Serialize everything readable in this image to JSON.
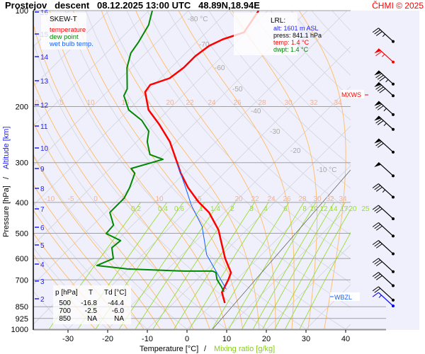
{
  "header": {
    "title": "Prostejov   descent   08.12.2025 13:00 UTC   48.89N,18.94E",
    "copyright": "ČHMI © 2025"
  },
  "legend": {
    "title": "SKEW-T",
    "temperature": "temperature",
    "dew_point": "dew point",
    "wet_bulb": "wet bulb temp."
  },
  "lrl": {
    "title": "LRL:",
    "alt": "alt: 1601 m ASL",
    "press": "press: 841.1 hPa",
    "temp": "temp: 1.4 °C",
    "dwpt": "dwpt: 1.4 °C"
  },
  "table": {
    "headers": [
      "p [hPa]",
      "T",
      "Td [°C]"
    ],
    "rows": [
      [
        "500",
        "-16.8",
        "-44.4"
      ],
      [
        "700",
        "-2.5",
        "-6.0"
      ],
      [
        "850",
        "NA",
        "NA"
      ]
    ]
  },
  "markers": {
    "mxws": "MXWS",
    "wbzl": "WBZL"
  },
  "colors": {
    "temperature": "#ff0000",
    "dew_point": "#008800",
    "wet_bulb": "#1060ff",
    "moist": "#ffc070",
    "mixing": "#99dd33",
    "plot_bg": "#f0f0fc"
  },
  "chart_data": {
    "type": "line",
    "title": "Prostejov descent 08.12.2025 13:00 UTC 48.89N,18.94E",
    "xlabel": "Temperature [°C]",
    "xlabel_sep": "/",
    "xlabel2": "Mixing ratio [g/kg]",
    "ylabel": "Pressure [hPa]",
    "ylabel_sep": "/",
    "ylabel2": "Altitude [km]",
    "ylim": [
      1000,
      100
    ],
    "xlim": [
      -39,
      50
    ],
    "x_ticks": [
      "-30",
      "-20",
      "-10",
      "0",
      "10",
      "20",
      "30",
      "40"
    ],
    "p_ticks": [
      "100",
      "200",
      "300",
      "400",
      "500",
      "600",
      "700",
      "850",
      "925",
      "1000"
    ],
    "alt_ticks": [
      "16",
      "15",
      "14",
      "13",
      "12",
      "11",
      "10",
      "9",
      "8",
      "7",
      "6",
      "5",
      "4",
      "3",
      "2"
    ],
    "isotherm_labels": [
      "-80 °C",
      "-70",
      "-60",
      "-50",
      "-40",
      "-30",
      "-20",
      "-10 °C"
    ],
    "theta_labels_200": [
      "0",
      "5",
      "10",
      "15",
      "20",
      "22",
      "24",
      "26",
      "28",
      "30",
      "32",
      "34"
    ],
    "theta_labels_400": [
      "-10",
      "-5",
      "0",
      "5",
      "10",
      "15",
      "20",
      "22",
      "24",
      "26",
      "28",
      "30",
      "32",
      "34"
    ],
    "mixing_labels": [
      "0.2",
      "0.4",
      "0.6",
      "1",
      "1.4",
      "2",
      "3",
      "4",
      "6",
      "8",
      "10",
      "12",
      "14",
      "17",
      "20",
      "25"
    ],
    "series": [
      {
        "name": "temperature",
        "p": [
          827,
          766,
          698,
          664,
          600,
          527,
          488,
          430,
          398,
          359,
          324,
          300,
          258,
          227,
          205,
          180,
          171,
          163,
          151,
          139,
          129,
          123,
          117,
          108,
          100
        ],
        "T": [
          2.9,
          -0.5,
          -2.1,
          -3.2,
          -8.2,
          -13.8,
          -17.1,
          -23.9,
          -29.3,
          -35.5,
          -40.9,
          -44.5,
          -51.6,
          -58.8,
          -65,
          -70.4,
          -70.9,
          -67.7,
          -66.8,
          -66.8,
          -65.9,
          -64.1,
          -60.5,
          -61.4,
          -62.3
        ]
      },
      {
        "name": "dew point",
        "p": [
          762,
          736,
          698,
          664,
          657,
          657,
          647,
          631,
          600,
          555,
          527,
          501,
          471,
          430,
          388,
          359,
          324,
          313,
          293,
          283,
          258,
          239,
          221,
          205,
          185,
          176,
          151,
          136,
          126,
          111,
          100
        ],
        "T": [
          -0.2,
          -2.0,
          -5.0,
          -7.0,
          -8.2,
          -15.4,
          -30.2,
          -38.8,
          -36.4,
          -39.5,
          -39.1,
          -44.5,
          -44.8,
          -48.9,
          -48.9,
          -50.2,
          -52.5,
          -54.6,
          -48.9,
          -53.4,
          -57.3,
          -59.6,
          -64.1,
          -70,
          -74.8,
          -75.7,
          -81.1,
          -83.8,
          -84.6,
          -86.4,
          -89.1
        ]
      },
      {
        "name": "wet bulb temp.",
        "p": [
          749,
          584,
          476,
          408,
          359,
          303
        ],
        "T": [
          -0.2,
          -13.8,
          -22.1,
          -30.2,
          -36.1,
          -44.1
        ]
      }
    ],
    "wind_barbs": [
      {
        "p": 125,
        "kt": 35
      },
      {
        "p": 145,
        "kt": 65
      },
      {
        "p": 170,
        "kt": 85
      },
      {
        "p": 185,
        "kt": 80
      },
      {
        "p": 212,
        "kt": 75
      },
      {
        "p": 236,
        "kt": 75
      },
      {
        "p": 278,
        "kt": 70
      },
      {
        "p": 330,
        "kt": 50
      },
      {
        "p": 385,
        "kt": 35
      },
      {
        "p": 450,
        "kt": 30
      },
      {
        "p": 510,
        "kt": 30
      },
      {
        "p": 580,
        "kt": 30
      },
      {
        "p": 660,
        "kt": 30
      },
      {
        "p": 730,
        "kt": 30
      },
      {
        "p": 810,
        "kt": 20
      },
      {
        "p": 845,
        "kt": 15
      }
    ]
  }
}
